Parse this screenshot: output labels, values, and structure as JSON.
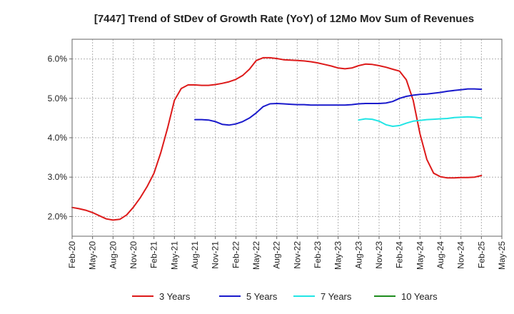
{
  "chart_data": {
    "type": "line",
    "title": "[7447]  Trend of StDev of Growth Rate (YoY) of 12Mo Mov Sum of Revenues",
    "xlabel": "",
    "ylabel": "",
    "ylim": [
      1.5,
      6.5
    ],
    "y_ticks": [
      2.0,
      3.0,
      4.0,
      5.0,
      6.0
    ],
    "y_tick_labels": [
      "2.0%",
      "3.0%",
      "4.0%",
      "5.0%",
      "6.0%"
    ],
    "x_ticks": [
      "Feb-20",
      "May-20",
      "Aug-20",
      "Nov-20",
      "Feb-21",
      "May-21",
      "Aug-21",
      "Nov-21",
      "Feb-22",
      "May-22",
      "Aug-22",
      "Nov-22",
      "Feb-23",
      "May-23",
      "Aug-23",
      "Nov-23",
      "Feb-24",
      "May-24",
      "Aug-24",
      "Nov-24",
      "Feb-25",
      "May-25"
    ],
    "grid": true,
    "legend_position": "bottom",
    "series": [
      {
        "name": "3 Years",
        "color": "#dd1a1a",
        "start_index": 0,
        "values": [
          2.23,
          2.2,
          2.16,
          2.1,
          2.02,
          1.94,
          1.91,
          1.93,
          2.04,
          2.24,
          2.48,
          2.76,
          3.1,
          3.62,
          4.25,
          4.95,
          5.25,
          5.34,
          5.34,
          5.33,
          5.33,
          5.35,
          5.38,
          5.42,
          5.48,
          5.58,
          5.74,
          5.96,
          6.03,
          6.03,
          6.01,
          5.98,
          5.97,
          5.96,
          5.95,
          5.93,
          5.9,
          5.86,
          5.82,
          5.77,
          5.75,
          5.77,
          5.83,
          5.87,
          5.86,
          5.83,
          5.79,
          5.74,
          5.69,
          5.47,
          4.95,
          4.1,
          3.45,
          3.1,
          3.01,
          2.98,
          2.98,
          2.99,
          2.99,
          3.0,
          3.04
        ]
      },
      {
        "name": "5 Years",
        "color": "#1a1acc",
        "start_index": 18,
        "values": [
          4.46,
          4.46,
          4.45,
          4.41,
          4.34,
          4.32,
          4.35,
          4.41,
          4.5,
          4.63,
          4.79,
          4.86,
          4.87,
          4.86,
          4.85,
          4.84,
          4.84,
          4.83,
          4.83,
          4.83,
          4.83,
          4.83,
          4.83,
          4.84,
          4.86,
          4.87,
          4.87,
          4.87,
          4.88,
          4.92,
          5.0,
          5.05,
          5.08,
          5.1,
          5.11,
          5.13,
          5.15,
          5.18,
          5.2,
          5.22,
          5.24,
          5.24,
          5.23
        ]
      },
      {
        "name": "7 Years",
        "color": "#22e5e5",
        "start_index": 42,
        "values": [
          4.45,
          4.48,
          4.47,
          4.42,
          4.33,
          4.29,
          4.31,
          4.37,
          4.42,
          4.44,
          4.46,
          4.47,
          4.48,
          4.49,
          4.51,
          4.52,
          4.53,
          4.52,
          4.5
        ]
      },
      {
        "name": "10 Years",
        "color": "#1e8c1e",
        "start_index": 0,
        "values": []
      }
    ]
  }
}
